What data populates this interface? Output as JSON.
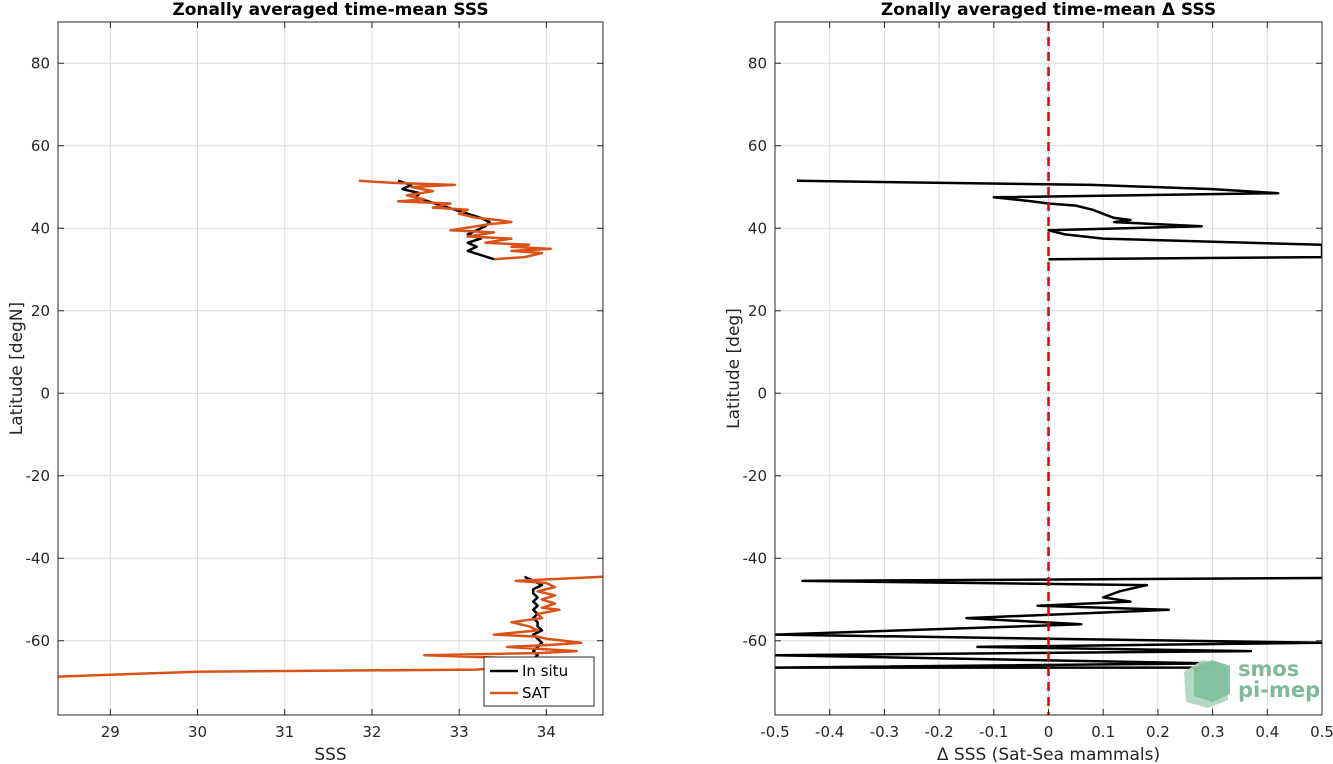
{
  "chart_data": [
    {
      "type": "line",
      "title": "Zonally averaged time-mean SSS",
      "xlabel": "SSS",
      "ylabel": "Latitude [degN]",
      "xlim": [
        28.4,
        34.65
      ],
      "ylim": [
        -78,
        90
      ],
      "xticks": [
        29,
        30,
        31,
        32,
        33,
        34
      ],
      "yticks": [
        -60,
        -40,
        -20,
        0,
        20,
        40,
        60,
        80
      ],
      "grid": true,
      "legend_position": "bottom-right",
      "series": [
        {
          "name": "In situ",
          "color": "#000000",
          "points": [
            [
              32.3,
              51.5
            ],
            [
              32.45,
              50.5
            ],
            [
              32.35,
              49.5
            ],
            [
              32.55,
              48.5
            ],
            [
              32.5,
              47.5
            ],
            [
              32.65,
              46.5
            ],
            [
              32.8,
              45.5
            ],
            [
              32.95,
              44.5
            ],
            [
              33.1,
              43.5
            ],
            [
              33.25,
              42.5
            ],
            [
              33.35,
              41.5
            ],
            [
              33.3,
              40.5
            ],
            [
              33.2,
              39.5
            ],
            [
              33.1,
              38.5
            ],
            [
              33.25,
              37.5
            ],
            [
              33.1,
              36.5
            ],
            [
              33.2,
              35.5
            ],
            [
              33.1,
              34.5
            ],
            [
              33.25,
              33.5
            ],
            [
              33.4,
              32.5
            ]
          ]
        },
        {
          "name": "In situ",
          "color": "#000000",
          "points": [
            [
              33.75,
              -44.5
            ],
            [
              33.85,
              -45.5
            ],
            [
              33.95,
              -46.5
            ],
            [
              33.85,
              -47.5
            ],
            [
              33.85,
              -48.5
            ],
            [
              33.9,
              -49.5
            ],
            [
              33.85,
              -50.5
            ],
            [
              33.9,
              -51.5
            ],
            [
              33.85,
              -52.5
            ],
            [
              33.9,
              -53.5
            ],
            [
              33.85,
              -54.5
            ],
            [
              33.9,
              -55.5
            ],
            [
              33.9,
              -56.5
            ],
            [
              33.95,
              -57.5
            ],
            [
              33.85,
              -58.5
            ],
            [
              33.9,
              -59.5
            ],
            [
              33.95,
              -60.5
            ],
            [
              33.9,
              -61.5
            ],
            [
              33.85,
              -62.5
            ],
            [
              33.9,
              -63.5
            ],
            [
              33.85,
              -64.5
            ],
            [
              33.9,
              -65.5
            ],
            [
              33.75,
              -66.5
            ]
          ]
        },
        {
          "name": "SAT",
          "color": "#d95319",
          "points": [
            [
              31.85,
              51.5
            ],
            [
              32.25,
              51.0
            ],
            [
              32.95,
              50.5
            ],
            [
              32.45,
              50.0
            ],
            [
              32.7,
              49.0
            ],
            [
              32.4,
              48.0
            ],
            [
              32.6,
              47.0
            ],
            [
              32.3,
              46.5
            ],
            [
              32.9,
              46.0
            ],
            [
              32.7,
              45.0
            ],
            [
              33.1,
              44.5
            ],
            [
              33.0,
              43.5
            ],
            [
              33.2,
              42.5
            ],
            [
              33.45,
              42.0
            ],
            [
              33.6,
              41.5
            ],
            [
              33.35,
              41.0
            ],
            [
              33.2,
              40.5
            ],
            [
              32.9,
              39.5
            ],
            [
              33.4,
              39.0
            ],
            [
              33.1,
              38.0
            ],
            [
              33.6,
              37.5
            ],
            [
              33.3,
              36.5
            ],
            [
              33.8,
              36.0
            ],
            [
              33.6,
              35.5
            ],
            [
              34.05,
              35.0
            ],
            [
              33.6,
              34.5
            ],
            [
              33.95,
              34.0
            ],
            [
              33.75,
              33.0
            ],
            [
              33.4,
              32.5
            ]
          ]
        },
        {
          "name": "SAT",
          "color": "#d95319",
          "points": [
            [
              34.65,
              -44.5
            ],
            [
              33.65,
              -45.5
            ],
            [
              34.0,
              -46.0
            ],
            [
              34.1,
              -47.0
            ],
            [
              33.9,
              -48.0
            ],
            [
              34.1,
              -49.0
            ],
            [
              33.95,
              -50.0
            ],
            [
              34.1,
              -51.0
            ],
            [
              33.95,
              -52.0
            ],
            [
              34.15,
              -52.5
            ],
            [
              33.9,
              -53.5
            ],
            [
              33.95,
              -54.5
            ],
            [
              33.6,
              -55.5
            ],
            [
              33.8,
              -56.5
            ],
            [
              33.9,
              -57.5
            ],
            [
              33.65,
              -58.0
            ],
            [
              33.4,
              -58.5
            ],
            [
              33.9,
              -59.0
            ],
            [
              34.0,
              -59.5
            ],
            [
              34.4,
              -60.5
            ],
            [
              34.05,
              -61.0
            ],
            [
              33.55,
              -61.5
            ],
            [
              34.35,
              -62.5
            ],
            [
              33.9,
              -63.0
            ],
            [
              32.6,
              -63.5
            ],
            [
              33.3,
              -64.0
            ],
            [
              33.95,
              -64.5
            ],
            [
              34.05,
              -65.0
            ],
            [
              33.8,
              -66.0
            ],
            [
              33.2,
              -67.0
            ],
            [
              30.0,
              -67.5
            ],
            [
              28.4,
              -68.7
            ]
          ]
        }
      ]
    },
    {
      "type": "line",
      "title": "Zonally averaged time-mean Δ SSS",
      "xlabel": "Δ SSS (Sat-Sea mammals)",
      "ylabel": "Latitude [deg]",
      "xlim": [
        -0.5,
        0.5
      ],
      "ylim": [
        -78,
        90
      ],
      "xticks": [
        -0.5,
        -0.4,
        -0.3,
        -0.2,
        -0.1,
        0,
        0.1,
        0.2,
        0.3,
        0.4,
        0.5
      ],
      "xticklabels": [
        "-0.5",
        "-0.4",
        "-0.3",
        "-0.2",
        "-0.1",
        "0",
        "0.1",
        "0.2",
        "0.3",
        "0.4",
        "0.5"
      ],
      "yticks": [
        -60,
        -40,
        -20,
        0,
        20,
        40,
        60,
        80
      ],
      "grid": true,
      "zero_line_color": "#e60000",
      "series": [
        {
          "color": "#000000",
          "points": [
            [
              -0.46,
              51.5
            ],
            [
              0.08,
              50.5
            ],
            [
              0.3,
              49.5
            ],
            [
              0.42,
              48.5
            ],
            [
              -0.1,
              47.5
            ],
            [
              -0.03,
              46.5
            ],
            [
              0.0,
              46.0
            ],
            [
              0.05,
              45.5
            ],
            [
              0.08,
              44.5
            ],
            [
              0.1,
              43.5
            ],
            [
              0.12,
              42.5
            ],
            [
              0.15,
              42.0
            ],
            [
              0.12,
              41.5
            ],
            [
              0.28,
              40.5
            ],
            [
              0.0,
              39.5
            ],
            [
              0.03,
              38.5
            ],
            [
              0.1,
              37.5
            ],
            [
              0.5,
              36.0
            ],
            [
              0.5,
              33.0
            ],
            [
              0.0,
              32.5
            ]
          ]
        },
        {
          "color": "#000000",
          "points": [
            [
              0.5,
              -44.8
            ],
            [
              -0.45,
              -45.5
            ],
            [
              0.18,
              -46.5
            ],
            [
              0.13,
              -48.0
            ],
            [
              0.1,
              -49.5
            ],
            [
              0.15,
              -50.5
            ],
            [
              -0.02,
              -51.5
            ],
            [
              0.22,
              -52.5
            ],
            [
              -0.15,
              -54.5
            ],
            [
              0.06,
              -56.0
            ],
            [
              -0.5,
              -58.5
            ],
            [
              0.5,
              -60.5
            ],
            [
              -0.13,
              -61.5
            ],
            [
              0.37,
              -62.5
            ],
            [
              -0.5,
              -63.5
            ],
            [
              0.3,
              -65.5
            ],
            [
              -0.5,
              -66.5
            ],
            [
              0.3,
              -66.5
            ]
          ]
        }
      ]
    }
  ],
  "legend": {
    "entries": [
      {
        "label": "In situ",
        "color": "#000000"
      },
      {
        "label": "SAT",
        "color": "#d95319"
      }
    ]
  },
  "logo": {
    "line1": "smos",
    "line2": "pi-mep"
  }
}
